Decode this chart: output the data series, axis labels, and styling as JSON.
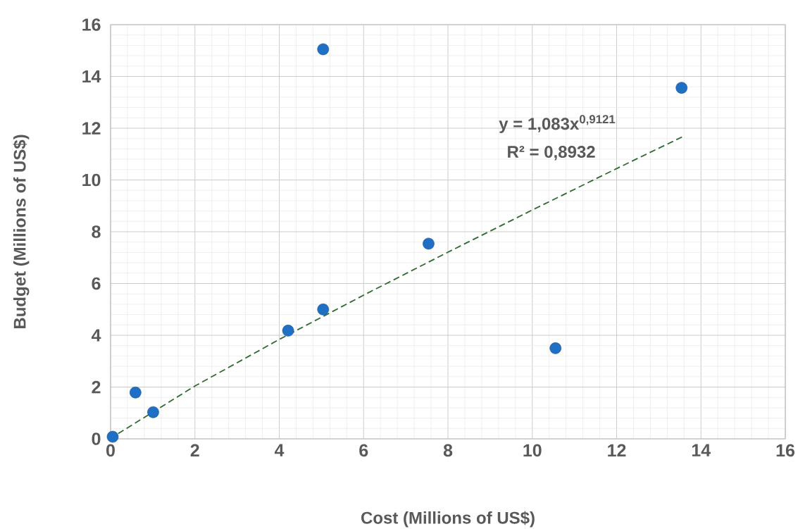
{
  "chart_data": {
    "type": "scatter",
    "xlabel": "Cost (Millions of US$)",
    "ylabel": "Budget (Millions of US$)",
    "xlim": [
      0,
      16
    ],
    "ylim": [
      0,
      16
    ],
    "xticks": [
      0,
      2,
      4,
      6,
      8,
      10,
      12,
      14,
      16
    ],
    "yticks": [
      0,
      2,
      4,
      6,
      8,
      10,
      12,
      14,
      16
    ],
    "grid": true,
    "series": [
      {
        "color": "#1f6fc5",
        "marker": "circle",
        "x": [
          0.05,
          0.59,
          1.01,
          4.21,
          5.04,
          5.04,
          7.54,
          10.55,
          13.54
        ],
        "values": [
          0.08,
          1.79,
          1.03,
          4.18,
          5.0,
          15.05,
          7.54,
          3.5,
          13.56
        ]
      },
      {
        "type": "line",
        "color": "#2e6b30",
        "line_style": "dashed",
        "marker": "none",
        "x": [
          0.05,
          2,
          4,
          6,
          8,
          10,
          12,
          13.55
        ],
        "values": [
          0.07,
          2.04,
          3.84,
          5.55,
          7.21,
          8.84,
          10.44,
          11.66
        ]
      }
    ],
    "annotations": [
      "y = 1,083x$^{0,9121}$",
      "R² = 0,8932"
    ]
  }
}
